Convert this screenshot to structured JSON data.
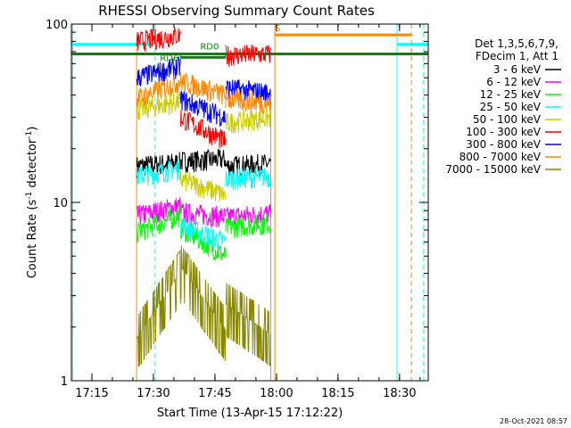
{
  "chart_data": {
    "type": "line",
    "title": "RHESSI Observing Summary Count Rates",
    "xlabel": "Start Time (13-Apr-15 17:12:22)",
    "ylabel_main": "Count Rate (s",
    "ylabel_sup1": "-1",
    "ylabel_mid": " detector",
    "ylabel_sup2": "-1",
    "ylabel_end": ")",
    "y_log": true,
    "ylim": [
      1,
      100
    ],
    "xlim_minutes": [
      -2.4,
      84.6
    ],
    "x_ticks": [
      {
        "m": 2.6,
        "label": "17:15"
      },
      {
        "m": 17.6,
        "label": "17:30"
      },
      {
        "m": 32.6,
        "label": "17:45"
      },
      {
        "m": 47.6,
        "label": "18:00"
      },
      {
        "m": 62.6,
        "label": "18:15"
      },
      {
        "m": 77.6,
        "label": "18:30"
      },
      {
        "m": 92.6,
        "label": "18:45"
      }
    ],
    "y_ticks": [
      {
        "v": 1,
        "label": "1"
      },
      {
        "v": 10,
        "label": "10"
      },
      {
        "v": 100,
        "label": "100"
      }
    ],
    "legend_header": [
      "Det 1,3,5,6,7,9,",
      "FDecim 1, Att 1"
    ],
    "legend_placement": "right",
    "series": [
      {
        "name": "3 - 6 keV",
        "color": "#000000",
        "segments": [
          {
            "x": [
              13.5,
              24.2
            ],
            "y": [
              16,
              16.8
            ]
          },
          {
            "x": [
              24.2,
              35.2
            ],
            "y": [
              17,
              17.5
            ]
          },
          {
            "x": [
              35.2,
              46.2
            ],
            "y": [
              16,
              16.5
            ]
          }
        ]
      },
      {
        "name": "6 - 12 keV",
        "color": "#ff00ff",
        "segments": [
          {
            "x": [
              13.5,
              24.2
            ],
            "y": [
              8.4,
              9.6
            ]
          },
          {
            "x": [
              24.2,
              35.2
            ],
            "y": [
              8.8,
              8.3
            ]
          },
          {
            "x": [
              35.2,
              46.2
            ],
            "y": [
              8.3,
              8.7
            ]
          }
        ]
      },
      {
        "name": "12 - 25 keV",
        "color": "#00ff00",
        "segments": [
          {
            "x": [
              13.5,
              24.2
            ],
            "y": [
              6.8,
              8.5
            ]
          },
          {
            "x": [
              24.2,
              35.2
            ],
            "y": [
              7.2,
              5.0
            ]
          },
          {
            "x": [
              35.2,
              46.2
            ],
            "y": [
              7.2,
              7.7
            ]
          }
        ]
      },
      {
        "name": "25 - 50 keV",
        "color": "#00ffff",
        "segments": [
          {
            "x": [
              13.5,
              24.2
            ],
            "y": [
              14,
              15.5
            ]
          },
          {
            "x": [
              24.2,
              35.2
            ],
            "y": [
              7.5,
              6.0
            ]
          },
          {
            "x": [
              35.2,
              46.2
            ],
            "y": [
              13.5,
              14
            ]
          }
        ]
      },
      {
        "name": "50 - 100 keV",
        "color": "#cccc00",
        "segments": [
          {
            "x": [
              13.5,
              24.2
            ],
            "y": [
              33,
              37
            ]
          },
          {
            "x": [
              24.2,
              35.2
            ],
            "y": [
              13.5,
              11
            ]
          },
          {
            "x": [
              35.2,
              46.2
            ],
            "y": [
              28,
              30
            ]
          }
        ]
      },
      {
        "name": "100 - 300 keV",
        "color": "#ff0000",
        "segments": [
          {
            "x": [
              13.5,
              24.2
            ],
            "y": [
              80,
              87
            ]
          },
          {
            "x": [
              24.2,
              35.2
            ],
            "y": [
              30,
              22
            ]
          },
          {
            "x": [
              35.2,
              46.2
            ],
            "y": [
              67,
              68
            ]
          }
        ]
      },
      {
        "name": "300 - 800 keV",
        "color": "#0000ff",
        "segments": [
          {
            "x": [
              13.5,
              24.2
            ],
            "y": [
              50,
              58
            ]
          },
          {
            "x": [
              24.2,
              35.2
            ],
            "y": [
              38,
              30
            ]
          },
          {
            "x": [
              35.2,
              46.2
            ],
            "y": [
              44,
              41
            ]
          }
        ]
      },
      {
        "name": "800 - 7000 keV",
        "color": "#ff8800",
        "segments": [
          {
            "x": [
              13.5,
              24.2
            ],
            "y": [
              38,
              48
            ]
          },
          {
            "x": [
              24.2,
              35.2
            ],
            "y": [
              48,
              40
            ]
          },
          {
            "x": [
              35.2,
              46.2
            ],
            "y": [
              38,
              36
            ]
          }
        ]
      },
      {
        "name": "7000 - 15000 keV",
        "color": "#888800",
        "segments": [
          {
            "x": [
              13.5,
              24.2
            ],
            "y": [
              1.6,
              3.8
            ]
          },
          {
            "x": [
              24.2,
              35.2
            ],
            "y": [
              4.1,
              1.8
            ]
          },
          {
            "x": [
              35.2,
              46.2
            ],
            "y": [
              2.5,
              1.7
            ]
          }
        ]
      }
    ],
    "annotations": [
      {
        "text": "RD6",
        "x": 19.2,
        "y": 62
      },
      {
        "text": "RD0",
        "x": 29.0,
        "y": 72
      },
      {
        "text": "S",
        "x": 47.2,
        "y": 91
      }
    ],
    "footer": "28-Oct-2021 08:57"
  }
}
